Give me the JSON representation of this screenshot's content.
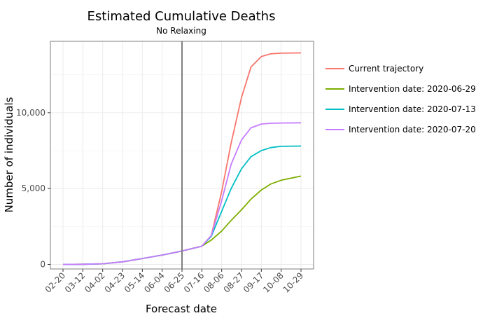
{
  "chart_data": {
    "type": "line",
    "title": "Estimated Cumulative Deaths",
    "subtitle": "No Relaxing",
    "xlabel": "Forecast date",
    "ylabel": "Number of individuals",
    "x_tick_labels": [
      "02-20",
      "03-12",
      "04-02",
      "04-23",
      "05-14",
      "06-04",
      "06-25",
      "07-16",
      "08-06",
      "08-27",
      "09-17",
      "10-08",
      "10-29"
    ],
    "y_ticks": [
      0,
      5000,
      10000
    ],
    "y_tick_labels": [
      "0",
      "5,000",
      "10,000"
    ],
    "ylim": [
      -300,
      14700
    ],
    "grid": true,
    "legend_position": "right",
    "vertical_line_at": "06-25",
    "series": [
      {
        "name": "Current trajectory",
        "color": "#f8766d",
        "points": [
          [
            "02-20",
            0
          ],
          [
            "03-12",
            10
          ],
          [
            "04-02",
            40
          ],
          [
            "04-23",
            170
          ],
          [
            "05-14",
            390
          ],
          [
            "06-04",
            620
          ],
          [
            "06-25",
            880
          ],
          [
            "07-16",
            1200
          ],
          [
            "07-26",
            1900
          ],
          [
            "08-06",
            4800
          ],
          [
            "08-16",
            8000
          ],
          [
            "08-27",
            11000
          ],
          [
            "09-06",
            13000
          ],
          [
            "09-17",
            13700
          ],
          [
            "09-27",
            13880
          ],
          [
            "10-08",
            13920
          ],
          [
            "10-29",
            13940
          ]
        ]
      },
      {
        "name": "Intervention date: 2020-06-29",
        "color": "#7cae00",
        "points": [
          [
            "02-20",
            0
          ],
          [
            "03-12",
            10
          ],
          [
            "04-02",
            40
          ],
          [
            "04-23",
            170
          ],
          [
            "05-14",
            390
          ],
          [
            "06-04",
            620
          ],
          [
            "06-25",
            880
          ],
          [
            "07-16",
            1200
          ],
          [
            "07-26",
            1600
          ],
          [
            "08-06",
            2200
          ],
          [
            "08-16",
            2900
          ],
          [
            "08-27",
            3600
          ],
          [
            "09-06",
            4300
          ],
          [
            "09-17",
            4900
          ],
          [
            "09-27",
            5300
          ],
          [
            "10-08",
            5550
          ],
          [
            "10-29",
            5820
          ]
        ]
      },
      {
        "name": "Intervention date: 2020-07-13",
        "color": "#00bfc4",
        "points": [
          [
            "02-20",
            0
          ],
          [
            "03-12",
            10
          ],
          [
            "04-02",
            40
          ],
          [
            "04-23",
            170
          ],
          [
            "05-14",
            390
          ],
          [
            "06-04",
            620
          ],
          [
            "06-25",
            880
          ],
          [
            "07-16",
            1200
          ],
          [
            "07-26",
            1850
          ],
          [
            "08-06",
            3500
          ],
          [
            "08-16",
            5000
          ],
          [
            "08-27",
            6300
          ],
          [
            "09-06",
            7100
          ],
          [
            "09-17",
            7500
          ],
          [
            "09-27",
            7700
          ],
          [
            "10-08",
            7780
          ],
          [
            "10-29",
            7800
          ]
        ]
      },
      {
        "name": "Intervention date: 2020-07-20",
        "color": "#c77cff",
        "points": [
          [
            "02-20",
            0
          ],
          [
            "03-12",
            10
          ],
          [
            "04-02",
            40
          ],
          [
            "04-23",
            170
          ],
          [
            "05-14",
            390
          ],
          [
            "06-04",
            620
          ],
          [
            "06-25",
            880
          ],
          [
            "07-16",
            1200
          ],
          [
            "07-26",
            1900
          ],
          [
            "08-06",
            4200
          ],
          [
            "08-16",
            6600
          ],
          [
            "08-27",
            8200
          ],
          [
            "09-06",
            9000
          ],
          [
            "09-17",
            9250
          ],
          [
            "09-27",
            9300
          ],
          [
            "10-08",
            9320
          ],
          [
            "10-29",
            9330
          ]
        ]
      }
    ]
  }
}
